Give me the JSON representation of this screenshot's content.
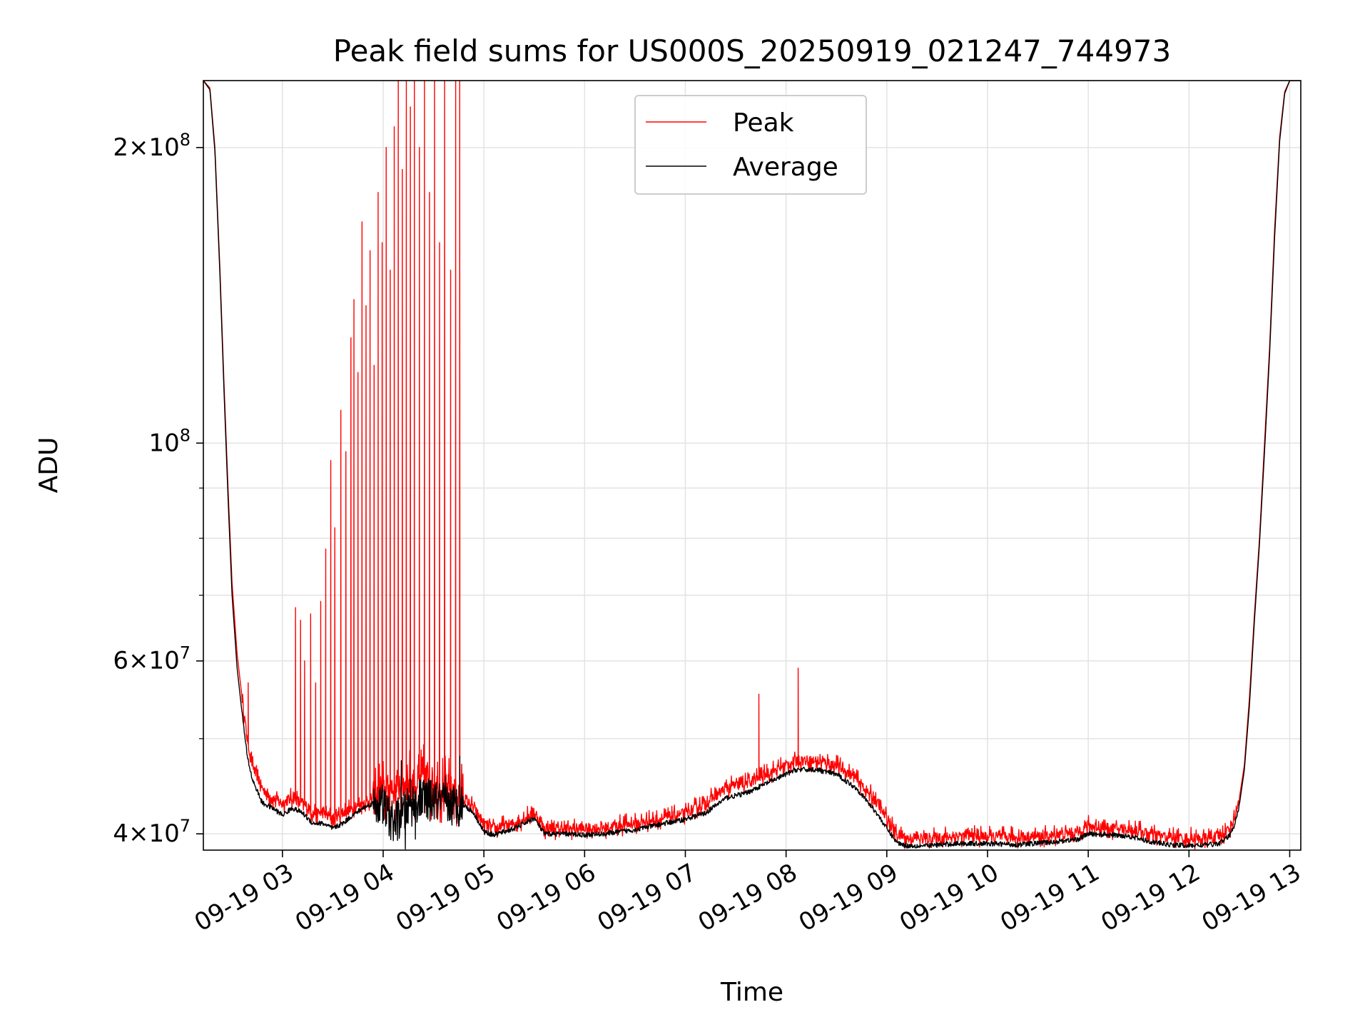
{
  "chart_data": {
    "type": "line",
    "title": "Peak field sums for US000S_20250919_021247_744973",
    "xlabel": "Time",
    "ylabel": "ADU",
    "yscale": "log",
    "xlim": [
      2.215,
      13.11
    ],
    "ylim": [
      38500000,
      234000000
    ],
    "x_ticks": [
      {
        "value": 3,
        "label": "09-19 03"
      },
      {
        "value": 4,
        "label": "09-19 04"
      },
      {
        "value": 5,
        "label": "09-19 05"
      },
      {
        "value": 6,
        "label": "09-19 06"
      },
      {
        "value": 7,
        "label": "09-19 07"
      },
      {
        "value": 8,
        "label": "09-19 08"
      },
      {
        "value": 9,
        "label": "09-19 09"
      },
      {
        "value": 10,
        "label": "09-19 10"
      },
      {
        "value": 11,
        "label": "09-19 11"
      },
      {
        "value": 12,
        "label": "09-19 12"
      },
      {
        "value": 13,
        "label": "09-19 13"
      }
    ],
    "y_ticks": [
      {
        "value": 40000000,
        "mantissa": "4",
        "exp": "7"
      },
      {
        "value": 60000000,
        "mantissa": "6",
        "exp": "7"
      },
      {
        "value": 100000000,
        "mantissa": "",
        "exp": "8"
      },
      {
        "value": 200000000,
        "mantissa": "2",
        "exp": "8"
      }
    ],
    "y_minor_ticks": [
      50000000,
      70000000,
      80000000,
      90000000
    ],
    "grid": true,
    "legend": {
      "position": "upper-center"
    },
    "series": [
      {
        "name": "Peak",
        "color": "#ff0000",
        "x": [
          2.215,
          2.28,
          2.33,
          2.38,
          2.42,
          2.46,
          2.5,
          2.55,
          2.6,
          2.65,
          2.7,
          2.8,
          2.9,
          3.0,
          3.1,
          3.2,
          3.3,
          3.4,
          3.5,
          3.6,
          3.7,
          3.8,
          3.9,
          4.0,
          4.1,
          4.2,
          4.3,
          4.4,
          4.5,
          4.6,
          4.7,
          4.8,
          4.9,
          5.0,
          5.1,
          5.3,
          5.5,
          5.6,
          5.8,
          6.0,
          6.2,
          6.5,
          6.8,
          7.0,
          7.2,
          7.4,
          7.6,
          7.8,
          8.0,
          8.1,
          8.3,
          8.5,
          8.7,
          8.9,
          9.0,
          9.1,
          9.2,
          9.4,
          9.7,
          10.0,
          10.3,
          10.6,
          10.9,
          11.0,
          11.2,
          11.4,
          11.6,
          11.8,
          12.0,
          12.2,
          12.3,
          12.4,
          12.45,
          12.5,
          12.55,
          12.6,
          12.65,
          12.7,
          12.75,
          12.8,
          12.85,
          12.9,
          12.95,
          13.0,
          13.11
        ],
        "y": [
          234000000,
          230000000,
          200000000,
          150000000,
          115000000,
          90000000,
          72000000,
          61000000,
          55000000,
          50000000,
          47000000,
          44500000,
          43500000,
          43000000,
          43500000,
          43000000,
          42000000,
          42000000,
          41500000,
          42000000,
          42500000,
          43000000,
          43500000,
          44000000,
          44500000,
          45000000,
          45000000,
          45500000,
          45000000,
          44500000,
          44000000,
          43500000,
          42500000,
          41000000,
          40500000,
          41000000,
          42000000,
          40500000,
          40500000,
          40500000,
          40600000,
          41000000,
          41500000,
          42000000,
          43000000,
          44500000,
          45000000,
          46000000,
          47000000,
          47500000,
          47500000,
          47000000,
          45500000,
          43000000,
          41500000,
          40000000,
          39600000,
          39600000,
          39800000,
          39700000,
          39700000,
          39800000,
          40200000,
          40800000,
          40500000,
          40500000,
          40000000,
          39700000,
          39600000,
          39600000,
          39700000,
          40500000,
          41500000,
          43500000,
          47000000,
          55000000,
          67000000,
          80000000,
          100000000,
          125000000,
          165000000,
          205000000,
          228000000,
          234000000,
          234000000
        ],
        "spikes": [
          {
            "x": 2.66,
            "y": 57000000
          },
          {
            "x": 3.13,
            "y": 68000000
          },
          {
            "x": 3.18,
            "y": 66000000
          },
          {
            "x": 3.22,
            "y": 60000000
          },
          {
            "x": 3.28,
            "y": 67000000
          },
          {
            "x": 3.33,
            "y": 57000000
          },
          {
            "x": 3.38,
            "y": 69000000
          },
          {
            "x": 3.43,
            "y": 78000000
          },
          {
            "x": 3.48,
            "y": 96000000
          },
          {
            "x": 3.52,
            "y": 82000000
          },
          {
            "x": 3.58,
            "y": 108000000
          },
          {
            "x": 3.63,
            "y": 98000000
          },
          {
            "x": 3.68,
            "y": 128000000
          },
          {
            "x": 3.71,
            "y": 140000000
          },
          {
            "x": 3.75,
            "y": 118000000
          },
          {
            "x": 3.79,
            "y": 168000000
          },
          {
            "x": 3.83,
            "y": 138000000
          },
          {
            "x": 3.87,
            "y": 157000000
          },
          {
            "x": 3.91,
            "y": 120000000
          },
          {
            "x": 3.95,
            "y": 180000000
          },
          {
            "x": 3.99,
            "y": 160000000
          },
          {
            "x": 4.03,
            "y": 200000000
          },
          {
            "x": 4.07,
            "y": 150000000
          },
          {
            "x": 4.11,
            "y": 210000000
          },
          {
            "x": 4.15,
            "y": 234000000
          },
          {
            "x": 4.19,
            "y": 190000000
          },
          {
            "x": 4.23,
            "y": 234000000
          },
          {
            "x": 4.27,
            "y": 220000000
          },
          {
            "x": 4.31,
            "y": 234000000
          },
          {
            "x": 4.36,
            "y": 200000000
          },
          {
            "x": 4.41,
            "y": 234000000
          },
          {
            "x": 4.46,
            "y": 180000000
          },
          {
            "x": 4.51,
            "y": 234000000
          },
          {
            "x": 4.56,
            "y": 160000000
          },
          {
            "x": 4.61,
            "y": 234000000
          },
          {
            "x": 4.67,
            "y": 150000000
          },
          {
            "x": 4.72,
            "y": 234000000
          },
          {
            "x": 4.76,
            "y": 234000000
          },
          {
            "x": 7.73,
            "y": 55500000
          },
          {
            "x": 8.12,
            "y": 59000000
          }
        ]
      },
      {
        "name": "Average",
        "color": "#000000",
        "x": [
          2.215,
          2.28,
          2.33,
          2.38,
          2.42,
          2.46,
          2.5,
          2.55,
          2.6,
          2.65,
          2.7,
          2.8,
          2.9,
          3.0,
          3.1,
          3.2,
          3.3,
          3.4,
          3.5,
          3.6,
          3.7,
          3.8,
          3.9,
          4.0,
          4.1,
          4.2,
          4.3,
          4.4,
          4.5,
          4.6,
          4.7,
          4.8,
          4.9,
          5.0,
          5.1,
          5.3,
          5.5,
          5.6,
          5.8,
          6.0,
          6.2,
          6.5,
          6.8,
          7.0,
          7.2,
          7.4,
          7.6,
          7.8,
          8.0,
          8.1,
          8.3,
          8.5,
          8.7,
          8.9,
          9.0,
          9.1,
          9.2,
          9.4,
          9.7,
          10.0,
          10.3,
          10.6,
          10.9,
          11.0,
          11.2,
          11.4,
          11.6,
          11.8,
          12.0,
          12.2,
          12.3,
          12.4,
          12.45,
          12.5,
          12.55,
          12.6,
          12.65,
          12.7,
          12.75,
          12.8,
          12.85,
          12.9,
          12.95,
          13.0,
          13.11
        ],
        "y": [
          234000000,
          229000000,
          198000000,
          148000000,
          113000000,
          88000000,
          70000000,
          59000000,
          53000000,
          48000000,
          45500000,
          43000000,
          42500000,
          41800000,
          42500000,
          42000000,
          41000000,
          41000000,
          40500000,
          41000000,
          41800000,
          42500000,
          43000000,
          42800000,
          41000000,
          42000000,
          43000000,
          43500000,
          43200000,
          43000000,
          42800000,
          42800000,
          42000000,
          40200000,
          39900000,
          40500000,
          41500000,
          40000000,
          40000000,
          39900000,
          40000000,
          40400000,
          41000000,
          41400000,
          42000000,
          43500000,
          44000000,
          45000000,
          46000000,
          46500000,
          46500000,
          46000000,
          44500000,
          42000000,
          40500000,
          39200000,
          38900000,
          38900000,
          39100000,
          39100000,
          39000000,
          39200000,
          39500000,
          40000000,
          39900000,
          39800000,
          39300000,
          39000000,
          38900000,
          39000000,
          39100000,
          39800000,
          40800000,
          42800000,
          46500000,
          54000000,
          66000000,
          79000000,
          98000000,
          123000000,
          162000000,
          203000000,
          227000000,
          234000000,
          234000000
        ],
        "spikes": [
          {
            "x": 4.18,
            "y": 47500000
          },
          {
            "x": 4.22,
            "y": 38600000
          },
          {
            "x": 4.27,
            "y": 45500000
          },
          {
            "x": 4.32,
            "y": 39500000
          },
          {
            "x": 4.38,
            "y": 44500000
          },
          {
            "x": 4.62,
            "y": 45800000
          },
          {
            "x": 4.76,
            "y": 48000000
          }
        ]
      }
    ]
  }
}
